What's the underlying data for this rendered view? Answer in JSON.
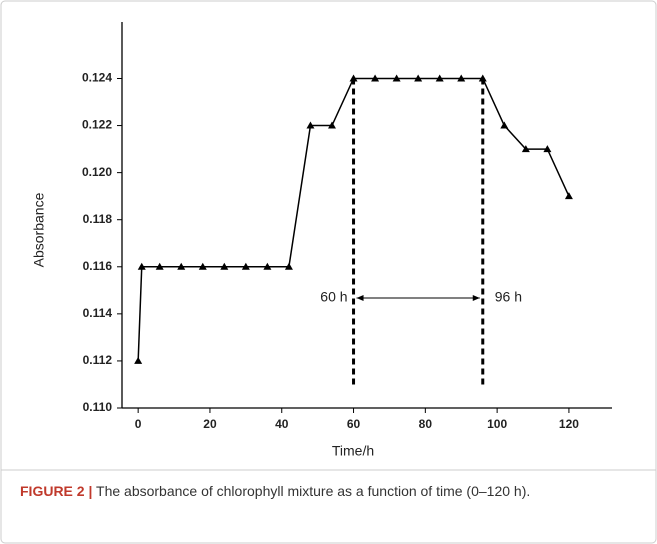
{
  "chart_data": {
    "type": "line",
    "x_label": "Time/h",
    "y_label": "Absorbance",
    "x": [
      0,
      1,
      6,
      12,
      18,
      24,
      30,
      36,
      42,
      48,
      54,
      60,
      66,
      72,
      78,
      84,
      90,
      96,
      102,
      108,
      114,
      120
    ],
    "series": [
      {
        "color": "#000000",
        "values": [
          0.112,
          0.116,
          0.116,
          0.116,
          0.116,
          0.116,
          0.116,
          0.116,
          0.116,
          0.122,
          0.122,
          0.124,
          0.124,
          0.124,
          0.124,
          0.124,
          0.124,
          0.124,
          0.122,
          0.121,
          0.121,
          0.119
        ]
      }
    ],
    "xlim": [
      -4.5,
      132
    ],
    "ylim": [
      0.11,
      0.1264
    ],
    "xticks": [
      0,
      20,
      40,
      60,
      80,
      100,
      120
    ],
    "yticks": [
      {
        "value": 0.11,
        "label": "0.110"
      },
      {
        "value": 0.112,
        "label": "0.112"
      },
      {
        "value": 0.114,
        "label": "0.114"
      },
      {
        "value": 0.116,
        "label": "0.116"
      },
      {
        "value": 0.118,
        "label": "0.118"
      },
      {
        "value": 0.12,
        "label": "0.120"
      },
      {
        "value": 0.122,
        "label": "0.122"
      },
      {
        "value": 0.124,
        "label": "0.124"
      }
    ],
    "vlines": [
      {
        "x": 60,
        "label": "60 h"
      },
      {
        "x": 96,
        "label": "96 h"
      }
    ]
  },
  "caption": {
    "label": "FIGURE 2 |",
    "text": "The absorbance of chlorophyll mixture as a function of time (0–120 h)."
  }
}
